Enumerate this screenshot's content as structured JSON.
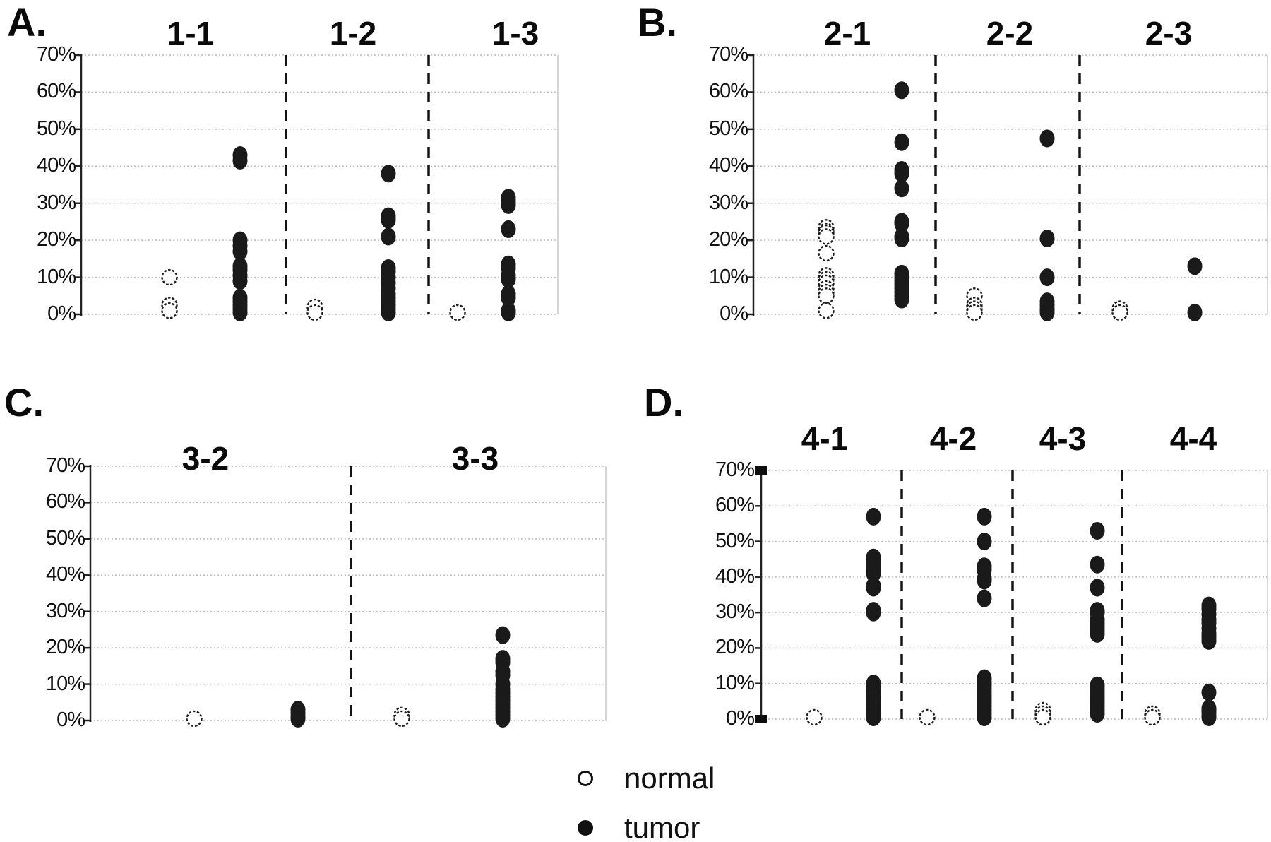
{
  "figure": {
    "background": "#ffffff",
    "colors": {
      "dot": "#1a1a1a",
      "grid": "#bcbcbc",
      "axis": "#222222",
      "separator": "#141414",
      "border": "#c9c9c9"
    }
  },
  "axis": {
    "tick_labels": [
      "70%",
      "60%",
      "50%",
      "40%",
      "30%",
      "20%",
      "10%",
      "0%"
    ],
    "ymin": 0,
    "ymax": 70,
    "tick_step": 10
  },
  "legend": {
    "items": [
      {
        "label": "normal",
        "marker": "open-circle"
      },
      {
        "label": "tumor",
        "marker": "filled-circle"
      }
    ]
  },
  "chart_data": [
    {
      "type": "scatter",
      "panel_letter": "A.",
      "ylim": [
        0,
        70
      ],
      "grid": true,
      "groups": [
        {
          "name": "1-1",
          "normal": [
            10,
            2.5,
            1
          ],
          "tumor": [
            43,
            41.5,
            20,
            18.5,
            17,
            13,
            12,
            10.5,
            9,
            4.5,
            3.5,
            2.5,
            1.5,
            0.5
          ]
        },
        {
          "name": "1-2",
          "normal": [
            2,
            0.5
          ],
          "tumor": [
            38,
            26.5,
            25.5,
            21,
            12.5,
            11.5,
            10,
            8.5,
            7,
            5.5,
            4.5,
            3.5,
            2.5,
            1.5,
            0.5
          ]
        },
        {
          "name": "1-3",
          "normal": [
            0.5
          ],
          "tumor": [
            31.5,
            30.5,
            29.5,
            23,
            13.5,
            12.5,
            10.5,
            9.5,
            5.5,
            4.5,
            1,
            0.5
          ]
        }
      ]
    },
    {
      "type": "scatter",
      "panel_letter": "B.",
      "ylim": [
        0,
        70
      ],
      "grid": true,
      "groups": [
        {
          "name": "2-1",
          "normal": [
            23.5,
            22.5,
            22,
            21,
            16.5,
            10.5,
            9.5,
            8.5,
            7,
            6,
            5,
            1
          ],
          "tumor": [
            60.5,
            46.5,
            39,
            38,
            34,
            25,
            24.5,
            21,
            20.5,
            11,
            10,
            9,
            8,
            7,
            6,
            5,
            4
          ]
        },
        {
          "name": "2-2",
          "normal": [
            5,
            2.5,
            1.5,
            0.5
          ],
          "tumor": [
            47.5,
            20.5,
            10,
            3.5,
            2.5,
            1.5,
            1,
            0.5
          ]
        },
        {
          "name": "2-3",
          "normal": [
            1.5,
            0.5
          ],
          "tumor": [
            13,
            0.5
          ]
        }
      ]
    },
    {
      "type": "scatter",
      "panel_letter": "C.",
      "ylim": [
        0,
        70
      ],
      "grid": true,
      "groups": [
        {
          "name": "3-2",
          "normal": [
            0.5
          ],
          "tumor": [
            3,
            2,
            1,
            0.5
          ]
        },
        {
          "name": "3-3",
          "normal": [
            1.5,
            0.5
          ],
          "tumor": [
            23.5,
            17,
            16,
            13.5,
            12.5,
            10,
            8.5,
            7.5,
            6.5,
            5.5,
            4.5,
            3.5,
            2.5,
            1.5,
            0.5
          ]
        }
      ]
    },
    {
      "type": "scatter",
      "panel_letter": "D.",
      "ylim": [
        0,
        70
      ],
      "grid": true,
      "axis_end_squares": true,
      "groups": [
        {
          "name": "4-1",
          "normal": [
            0.5
          ],
          "tumor": [
            57,
            45.5,
            44,
            42.5,
            41,
            37.5,
            37,
            30.5,
            30,
            10,
            9,
            8,
            7,
            6,
            5,
            4,
            3,
            2.5,
            2,
            1.5,
            1,
            0.5
          ]
        },
        {
          "name": "4-2",
          "normal": [
            0.5
          ],
          "tumor": [
            57,
            50,
            43,
            42,
            39.5,
            39,
            34,
            11.5,
            10.5,
            9.5,
            8.5,
            7.5,
            6.5,
            5.5,
            4.5,
            3.5,
            2.5,
            1.5,
            0.5
          ]
        },
        {
          "name": "4-3",
          "normal": [
            2.5,
            1.5,
            0.5
          ],
          "tumor": [
            53,
            43.5,
            37,
            30.5,
            30,
            28,
            27,
            26,
            25,
            24,
            9.5,
            8.5,
            7.5,
            6.5,
            5.5,
            4.5,
            3.5,
            2.5,
            1.5
          ]
        },
        {
          "name": "4-4",
          "normal": [
            1.5,
            0.5
          ],
          "tumor": [
            32,
            31,
            29.5,
            28,
            27,
            25.5,
            24,
            23,
            22,
            7.5,
            3,
            2.5,
            2,
            1,
            0.5
          ]
        }
      ]
    }
  ]
}
